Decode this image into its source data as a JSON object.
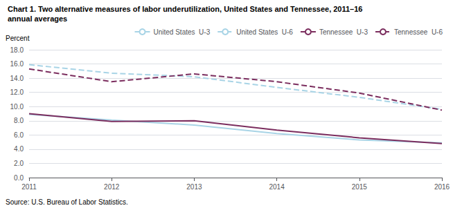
{
  "chart_data": {
    "type": "line",
    "title": "Chart 1. Two alternative measures of labor underutilization, United States and Tennessee, 2011–16",
    "subtitle": "annual averages",
    "y_label": "Percent",
    "categories": [
      "2011",
      "2012",
      "2013",
      "2014",
      "2015",
      "2016"
    ],
    "series": [
      {
        "name": "United States  U-3",
        "color": "#a8d4e6",
        "line_style": "solid",
        "values": [
          8.9,
          8.1,
          7.4,
          6.2,
          5.3,
          4.9
        ]
      },
      {
        "name": "United States  U-6",
        "color": "#a8d4e6",
        "line_style": "dashed",
        "values": [
          15.9,
          14.7,
          14.2,
          12.7,
          11.3,
          9.6
        ]
      },
      {
        "name": "Tennessee  U-3",
        "color": "#7b2d5e",
        "line_style": "solid",
        "values": [
          9.0,
          7.9,
          8.0,
          6.7,
          5.6,
          4.8
        ]
      },
      {
        "name": "Tennessee  U-6",
        "color": "#7b2d5e",
        "line_style": "dashed",
        "values": [
          15.3,
          13.5,
          14.6,
          13.5,
          11.9,
          9.5
        ]
      }
    ],
    "ylim": [
      0.0,
      18.0
    ],
    "yticks": [
      {
        "value": 0,
        "label": "0.0"
      },
      {
        "value": 2,
        "label": "2.0"
      },
      {
        "value": 4,
        "label": "4.0"
      },
      {
        "value": 6,
        "label": "6.0"
      },
      {
        "value": 8,
        "label": "8.0"
      },
      {
        "value": 10,
        "label": "10.0"
      },
      {
        "value": 12,
        "label": "12.0"
      },
      {
        "value": 14,
        "label": "14.0"
      },
      {
        "value": 16,
        "label": "16.0"
      },
      {
        "value": 18,
        "label": "18.0"
      }
    ],
    "grid": true,
    "legend": "top",
    "annotations": [
      "Source: U.S. Bureau of Labor Statistics."
    ]
  }
}
